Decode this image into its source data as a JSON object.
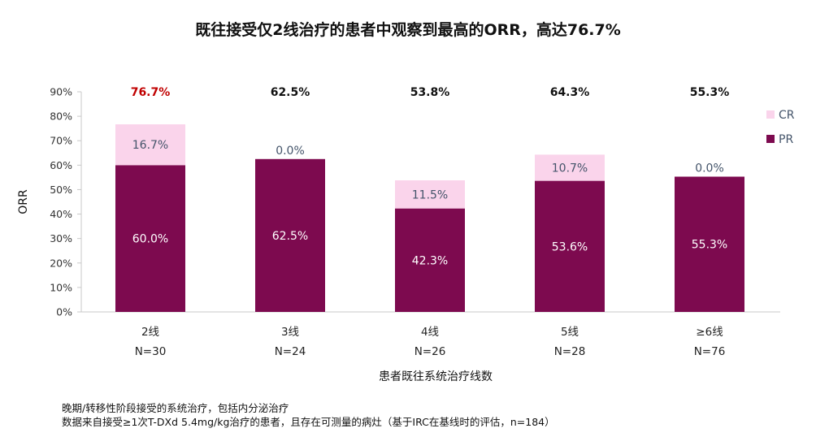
{
  "chart_data": {
    "type": "bar",
    "stacked": true,
    "title": "既往接受仅2线治疗的患者中观察到最高的ORR，高达76.7%",
    "xlabel": "患者既往系统治疗线数",
    "ylabel": "ORR",
    "ylim": [
      0,
      90
    ],
    "yticks": [
      "0%",
      "10%",
      "20%",
      "30%",
      "40%",
      "50%",
      "60%",
      "70%",
      "80%",
      "90%"
    ],
    "categories": [
      "2线",
      "3线",
      "4线",
      "5线",
      "≥6线"
    ],
    "n_labels": [
      "N=30",
      "N=24",
      "N=26",
      "N=28",
      "N=76"
    ],
    "series": [
      {
        "name": "PR",
        "values": [
          60.0,
          62.5,
          42.3,
          53.6,
          55.3
        ],
        "labels": [
          "60.0%",
          "62.5%",
          "42.3%",
          "53.6%",
          "55.3%"
        ],
        "color": "#7d0a4f"
      },
      {
        "name": "CR",
        "values": [
          16.7,
          0.0,
          11.5,
          10.7,
          0.0
        ],
        "labels": [
          "16.7%",
          "0.0%",
          "11.5%",
          "10.7%",
          "0.0%"
        ],
        "color": "#fad4eb"
      }
    ],
    "totals": [
      "76.7%",
      "62.5%",
      "53.8%",
      "64.3%",
      "55.3%"
    ],
    "highlight_total_index": 0,
    "highlight_color": "#c00000",
    "legend": {
      "position": "top-right",
      "order": [
        "CR",
        "PR"
      ]
    },
    "grid": false
  },
  "footnotes": [
    "晚期/转移性阶段接受的系统治疗，包括内分泌治疗",
    "数据来自接受≥1次T-DXd 5.4mg/kg治疗的患者，且存在可测量的病灶（基于IRC在基线时的评估，n=184）"
  ]
}
